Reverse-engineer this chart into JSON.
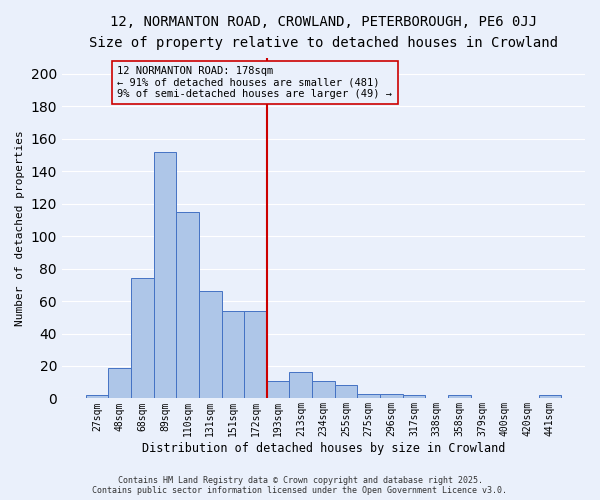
{
  "title": "12, NORMANTON ROAD, CROWLAND, PETERBOROUGH, PE6 0JJ",
  "subtitle": "Size of property relative to detached houses in Crowland",
  "xlabel": "Distribution of detached houses by size in Crowland",
  "ylabel": "Number of detached properties",
  "bin_labels": [
    "27sqm",
    "48sqm",
    "68sqm",
    "89sqm",
    "110sqm",
    "131sqm",
    "151sqm",
    "172sqm",
    "193sqm",
    "213sqm",
    "234sqm",
    "255sqm",
    "275sqm",
    "296sqm",
    "317sqm",
    "338sqm",
    "358sqm",
    "379sqm",
    "400sqm",
    "420sqm",
    "441sqm"
  ],
  "bar_heights": [
    2,
    19,
    74,
    152,
    115,
    66,
    54,
    54,
    11,
    16,
    11,
    8,
    3,
    3,
    2,
    0,
    2,
    0,
    0,
    0,
    2
  ],
  "bar_color": "#aec6e8",
  "bar_edge_color": "#4472c4",
  "bg_color": "#eaf0fb",
  "grid_color": "#ffffff",
  "vline_x": 7.5,
  "vline_color": "#cc0000",
  "annotation_text": "12 NORMANTON ROAD: 178sqm\n← 91% of detached houses are smaller (481)\n9% of semi-detached houses are larger (49) →",
  "footer_text": "Contains HM Land Registry data © Crown copyright and database right 2025.\nContains public sector information licensed under the Open Government Licence v3.0.",
  "ylim": [
    0,
    210
  ],
  "title_fontsize": 10,
  "subtitle_fontsize": 9,
  "tick_fontsize": 7,
  "ylabel_fontsize": 8,
  "xlabel_fontsize": 8.5,
  "footer_fontsize": 6,
  "annot_fontsize": 7.5
}
